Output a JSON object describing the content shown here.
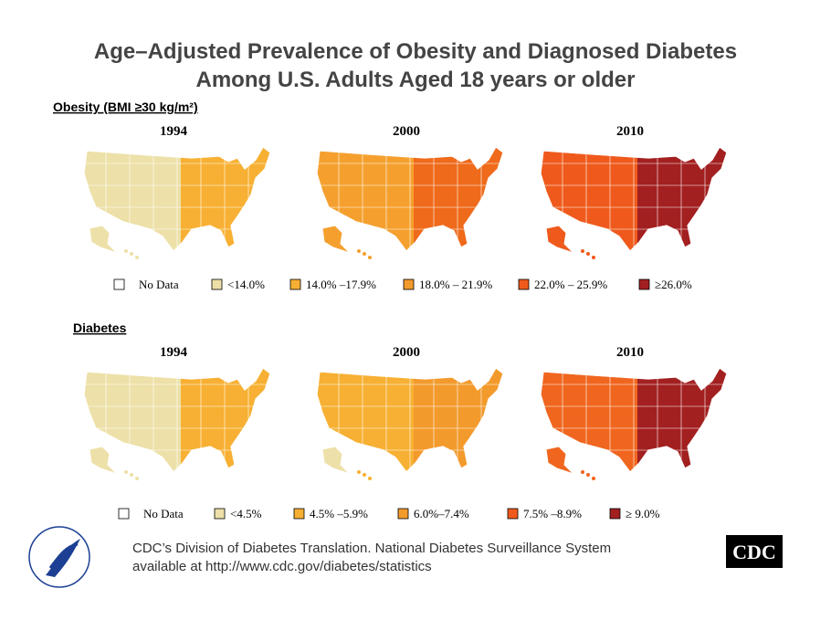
{
  "title": [
    "Age–Adjusted Prevalence of Obesity and Diagnosed Diabetes",
    "Among U.S. Adults Aged 18 years or older"
  ],
  "sections": [
    {
      "heading": "Obesity (BMI ≥30 kg/m²)",
      "maps": [
        {
          "year": "1994",
          "fill": "#ede0a8",
          "accent": "#f7b033"
        },
        {
          "year": "2000",
          "fill": "#f5a02e",
          "accent": "#ef6a1a"
        },
        {
          "year": "2010",
          "fill": "#ef5a1c",
          "accent": "#a32020"
        }
      ],
      "legend": [
        {
          "label": "No Data",
          "color": "#ffffff"
        },
        {
          "label": "<14.0%",
          "color": "#ede0a8"
        },
        {
          "label": "14.0% –17.9%",
          "color": "#f7b033"
        },
        {
          "label": "18.0% – 21.9%",
          "color": "#f39a2c"
        },
        {
          "label": "22.0% – 25.9%",
          "color": "#ef5a1c"
        },
        {
          "label": "≥26.0%",
          "color": "#a32020"
        }
      ]
    },
    {
      "heading": "Diabetes",
      "maps": [
        {
          "year": "1994",
          "fill": "#ede0a8",
          "accent": "#f7b033"
        },
        {
          "year": "2000",
          "fill": "#f7b033",
          "accent": "#f39a2c"
        },
        {
          "year": "2010",
          "fill": "#f0661e",
          "accent": "#a32020"
        }
      ],
      "legend": [
        {
          "label": "No Data",
          "color": "#ffffff"
        },
        {
          "label": "<4.5%",
          "color": "#ede0a8"
        },
        {
          "label": "4.5% –5.9%",
          "color": "#f7b033"
        },
        {
          "label": "6.0%–7.4%",
          "color": "#f39a2c"
        },
        {
          "label": "7.5% –8.9%",
          "color": "#ef5a1c"
        },
        {
          "label": "≥ 9.0%",
          "color": "#a32020"
        }
      ]
    }
  ],
  "footer": {
    "lines": [
      "CDC’s Division of Diabetes Translation. National Diabetes Surveillance System",
      "available at http://www.cdc.gov/diabetes/statistics"
    ],
    "logo": "CDC"
  }
}
